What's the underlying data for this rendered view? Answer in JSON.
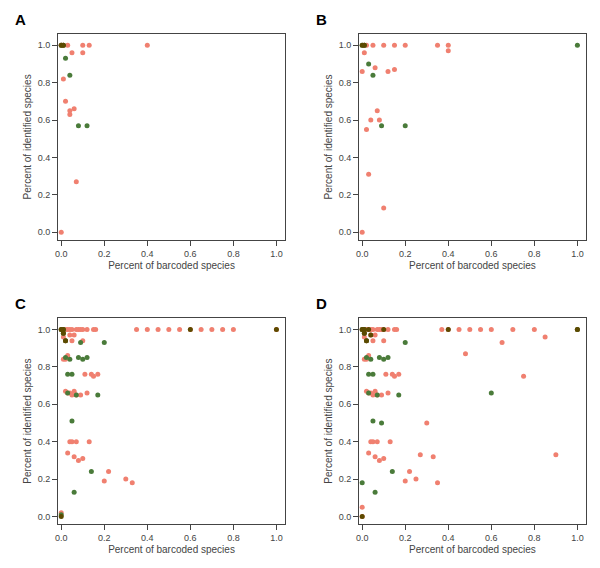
{
  "chart_data": [
    {
      "type": "scatter",
      "title": "A",
      "xlabel": "Percent of barcoded species",
      "ylabel": "Percent of identified species",
      "xlim": [
        -0.015,
        1.04
      ],
      "ylim": [
        -0.04,
        1.06
      ],
      "xticks": [
        {
          "value": 0.0,
          "label": "0.0"
        },
        0.2,
        0.4,
        0.6,
        0.8,
        {
          "value": 1.0,
          "label": "1.0"
        }
      ],
      "yticks": [
        {
          "value": 0.0,
          "label": "0.0"
        },
        0.2,
        0.4,
        0.6,
        0.8,
        {
          "value": 1.0,
          "label": "1.0"
        }
      ],
      "grid": false,
      "series": [
        {
          "color": "#F08070",
          "x": [
            0.0,
            0.0,
            0.01,
            0.01,
            0.02,
            0.03,
            0.04,
            0.04,
            0.05,
            0.06,
            0.07,
            0.1,
            0.1,
            0.13,
            0.4
          ],
          "values": [
            0.0,
            1.0,
            1.0,
            0.82,
            0.7,
            1.0,
            0.65,
            0.63,
            0.96,
            0.66,
            0.27,
            1.0,
            0.96,
            1.0,
            1.0
          ]
        },
        {
          "color": "#4A7B3A",
          "x": [
            0.0,
            0.01,
            0.02,
            0.04,
            0.08,
            0.12
          ],
          "values": [
            1.0,
            1.0,
            0.93,
            0.84,
            0.57,
            0.57
          ]
        },
        {
          "color": "#5C4A00",
          "x": [
            0.0,
            0.01
          ],
          "values": [
            1.0,
            1.0
          ]
        }
      ]
    },
    {
      "type": "scatter",
      "title": "B",
      "xlabel": "Percent of barcoded species",
      "ylabel": "Percent of identified species",
      "xlim": [
        -0.015,
        1.04
      ],
      "ylim": [
        -0.04,
        1.06
      ],
      "xticks": [
        {
          "value": 0.0,
          "label": "0.0"
        },
        0.2,
        0.4,
        0.6,
        0.8,
        {
          "value": 1.0,
          "label": "1.0"
        }
      ],
      "yticks": [
        {
          "value": 0.0,
          "label": "0.0"
        },
        0.2,
        0.4,
        0.6,
        0.8,
        {
          "value": 1.0,
          "label": "1.0"
        }
      ],
      "grid": false,
      "series": [
        {
          "color": "#F08070",
          "x": [
            0.0,
            0.0,
            0.01,
            0.01,
            0.02,
            0.02,
            0.03,
            0.04,
            0.05,
            0.06,
            0.07,
            0.08,
            0.1,
            0.1,
            0.12,
            0.15,
            0.15,
            0.2,
            0.35,
            0.4,
            0.4
          ],
          "values": [
            0.0,
            0.86,
            1.0,
            0.96,
            1.0,
            0.55,
            0.31,
            0.6,
            1.0,
            0.88,
            0.65,
            0.6,
            1.0,
            0.13,
            0.86,
            1.0,
            0.87,
            1.0,
            1.0,
            1.0,
            0.97
          ]
        },
        {
          "color": "#4A7B3A",
          "x": [
            0.0,
            0.01,
            0.03,
            0.05,
            0.09,
            0.2,
            1.0
          ],
          "values": [
            1.0,
            1.0,
            0.9,
            0.84,
            0.57,
            0.57,
            1.0
          ]
        },
        {
          "color": "#5C4A00",
          "x": [
            0.0,
            0.01
          ],
          "values": [
            1.0,
            1.0
          ]
        }
      ]
    },
    {
      "type": "scatter",
      "title": "C",
      "xlabel": "Percent of barcoded species",
      "ylabel": "Percent of identified species",
      "xlim": [
        -0.015,
        1.04
      ],
      "ylim": [
        -0.04,
        1.06
      ],
      "xticks": [
        {
          "value": 0.0,
          "label": "0.0"
        },
        0.2,
        0.4,
        0.6,
        0.8,
        {
          "value": 1.0,
          "label": "1.0"
        }
      ],
      "yticks": [
        {
          "value": 0.0,
          "label": "0.0"
        },
        0.2,
        0.4,
        0.6,
        0.8,
        {
          "value": 1.0,
          "label": "1.0"
        }
      ],
      "grid": false,
      "series": [
        {
          "color": "#F08070",
          "x": [
            0.0,
            0.0,
            0.01,
            0.01,
            0.01,
            0.01,
            0.02,
            0.02,
            0.02,
            0.02,
            0.03,
            0.03,
            0.03,
            0.03,
            0.04,
            0.04,
            0.04,
            0.04,
            0.05,
            0.05,
            0.05,
            0.05,
            0.06,
            0.06,
            0.06,
            0.07,
            0.07,
            0.07,
            0.08,
            0.08,
            0.09,
            0.09,
            0.1,
            0.1,
            0.1,
            0.11,
            0.12,
            0.12,
            0.13,
            0.14,
            0.15,
            0.15,
            0.16,
            0.17,
            0.2,
            0.22,
            0.3,
            0.33,
            0.35,
            0.4,
            0.45,
            0.5,
            0.55,
            0.6,
            0.65,
            0.7,
            0.75,
            0.8,
            1.0
          ],
          "values": [
            0.02,
            1.0,
            1.0,
            1.0,
            0.96,
            0.84,
            1.0,
            0.94,
            0.84,
            0.67,
            1.0,
            0.86,
            0.66,
            0.34,
            1.0,
            0.97,
            0.66,
            0.4,
            1.0,
            0.94,
            0.65,
            0.4,
            0.97,
            0.67,
            0.32,
            1.0,
            0.65,
            0.4,
            1.0,
            0.3,
            1.0,
            0.65,
            1.0,
            0.94,
            0.31,
            0.76,
            1.0,
            0.66,
            0.4,
            0.76,
            1.0,
            0.75,
            1.0,
            0.76,
            0.19,
            0.24,
            0.2,
            0.18,
            1.0,
            1.0,
            1.0,
            1.0,
            1.0,
            1.0,
            1.0,
            1.0,
            1.0,
            1.0,
            1.0
          ]
        },
        {
          "color": "#4A7B3A",
          "x": [
            0.0,
            0.0,
            0.01,
            0.01,
            0.02,
            0.02,
            0.03,
            0.03,
            0.04,
            0.05,
            0.05,
            0.06,
            0.07,
            0.08,
            0.09,
            0.1,
            0.12,
            0.14,
            0.17,
            0.2
          ],
          "values": [
            0.01,
            1.0,
            1.0,
            0.98,
            0.94,
            0.85,
            0.76,
            0.66,
            0.84,
            0.51,
            0.76,
            0.13,
            0.65,
            0.85,
            0.93,
            0.84,
            0.85,
            0.24,
            0.65,
            0.93
          ]
        },
        {
          "color": "#5C4A00",
          "x": [
            0.0,
            0.0,
            0.01,
            0.01,
            0.02,
            0.6,
            1.0
          ],
          "values": [
            0.0,
            1.0,
            1.0,
            0.98,
            0.94,
            1.0,
            1.0
          ]
        }
      ]
    },
    {
      "type": "scatter",
      "title": "D",
      "xlabel": "Percent of barcoded species",
      "ylabel": "Percent of identified species",
      "xlim": [
        -0.015,
        1.04
      ],
      "ylim": [
        -0.04,
        1.06
      ],
      "xticks": [
        {
          "value": 0.0,
          "label": "0.0"
        },
        0.2,
        0.4,
        0.6,
        0.8,
        {
          "value": 1.0,
          "label": "1.0"
        }
      ],
      "yticks": [
        {
          "value": 0.0,
          "label": "0.0"
        },
        0.2,
        0.4,
        0.6,
        0.8,
        {
          "value": 1.0,
          "label": "1.0"
        }
      ],
      "grid": false,
      "series": [
        {
          "color": "#F08070",
          "x": [
            0.0,
            0.0,
            0.0,
            0.01,
            0.01,
            0.01,
            0.01,
            0.02,
            0.02,
            0.02,
            0.02,
            0.03,
            0.03,
            0.03,
            0.03,
            0.04,
            0.04,
            0.04,
            0.04,
            0.05,
            0.05,
            0.05,
            0.05,
            0.06,
            0.06,
            0.06,
            0.07,
            0.07,
            0.07,
            0.08,
            0.08,
            0.09,
            0.09,
            0.1,
            0.1,
            0.1,
            0.11,
            0.12,
            0.12,
            0.13,
            0.14,
            0.15,
            0.15,
            0.16,
            0.17,
            0.2,
            0.22,
            0.25,
            0.27,
            0.3,
            0.33,
            0.35,
            0.37,
            0.4,
            0.45,
            0.48,
            0.5,
            0.55,
            0.6,
            0.65,
            0.7,
            0.75,
            0.8,
            0.85,
            0.9,
            1.0
          ],
          "values": [
            0.0,
            0.05,
            1.0,
            1.0,
            1.0,
            0.96,
            0.84,
            1.0,
            0.94,
            0.84,
            0.67,
            1.0,
            0.86,
            0.66,
            0.34,
            1.0,
            0.97,
            0.66,
            0.4,
            1.0,
            0.94,
            0.65,
            0.4,
            0.97,
            0.67,
            0.32,
            1.0,
            0.65,
            0.4,
            1.0,
            0.3,
            1.0,
            0.65,
            1.0,
            0.94,
            0.31,
            0.76,
            1.0,
            0.66,
            0.4,
            0.76,
            1.0,
            0.75,
            1.0,
            0.76,
            0.19,
            0.24,
            0.2,
            0.33,
            0.5,
            0.32,
            0.18,
            1.0,
            1.0,
            1.0,
            0.87,
            1.0,
            1.0,
            1.0,
            0.93,
            1.0,
            0.75,
            1.0,
            0.96,
            0.33,
            1.0
          ]
        },
        {
          "color": "#4A7B3A",
          "x": [
            0.0,
            0.0,
            0.01,
            0.01,
            0.02,
            0.02,
            0.03,
            0.03,
            0.04,
            0.05,
            0.05,
            0.06,
            0.07,
            0.08,
            0.09,
            0.1,
            0.12,
            0.14,
            0.17,
            0.2,
            0.6,
            1.0
          ],
          "values": [
            0.18,
            1.0,
            1.0,
            0.98,
            0.94,
            0.85,
            0.76,
            0.66,
            0.84,
            0.51,
            0.76,
            0.13,
            0.65,
            0.85,
            0.5,
            0.84,
            0.85,
            0.24,
            0.65,
            0.93,
            0.66,
            1.0
          ]
        },
        {
          "color": "#5C4A00",
          "x": [
            0.0,
            0.0,
            0.01,
            0.01,
            0.02,
            0.03,
            0.04,
            0.1,
            0.4,
            1.0
          ],
          "values": [
            0.0,
            1.0,
            1.0,
            0.98,
            0.94,
            1.0,
            0.97,
            1.0,
            1.0,
            1.0
          ]
        }
      ]
    }
  ]
}
